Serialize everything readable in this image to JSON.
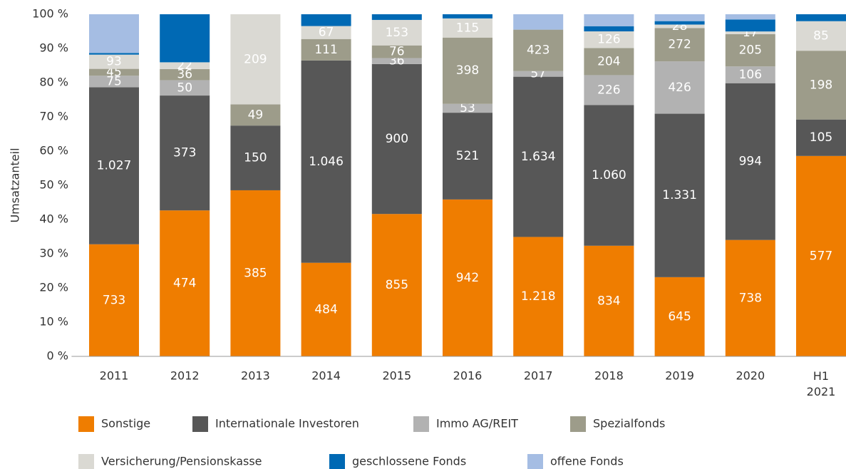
{
  "chart_data": {
    "type": "bar",
    "stacked": true,
    "normalize": true,
    "y_label": "Umsatzanteil",
    "categories": [
      "2011",
      "2012",
      "2013",
      "2014",
      "2015",
      "2016",
      "2017",
      "2018",
      "2019",
      "2020",
      "H1 2021"
    ],
    "ylim": [
      0,
      100
    ],
    "yticks": [
      {
        "value": 0,
        "label": "0 %"
      },
      {
        "value": 10,
        "label": "10 %"
      },
      {
        "value": 20,
        "label": "20 %"
      },
      {
        "value": 30,
        "label": "30 %"
      },
      {
        "value": 40,
        "label": "40 %"
      },
      {
        "value": 50,
        "label": "50 %"
      },
      {
        "value": 60,
        "label": "60 %"
      },
      {
        "value": 70,
        "label": "70 %"
      },
      {
        "value": 80,
        "label": "80 %"
      },
      {
        "value": 90,
        "label": "90 %"
      },
      {
        "value": 100,
        "label": "100 %"
      }
    ],
    "grid": false,
    "series": [
      {
        "name": "Sonstige",
        "color": "#ef7d00",
        "values": [
          733,
          474,
          385,
          484,
          855,
          942,
          1218,
          834,
          645,
          738,
          577
        ],
        "value_labels": [
          "733",
          "474",
          "385",
          "484",
          "855",
          "942",
          "1.218",
          "834",
          "645",
          "738",
          "577"
        ]
      },
      {
        "name": "Internationale Investoren",
        "color": "#575757",
        "values": [
          1027,
          373,
          150,
          1046,
          900,
          521,
          1634,
          1060,
          1331,
          994,
          105
        ],
        "value_labels": [
          "1.027",
          "373",
          "150",
          "1.046",
          "900",
          "521",
          "1.634",
          "1.060",
          "1.331",
          "994",
          "105"
        ]
      },
      {
        "name": "Immo AG/REIT",
        "color": "#b2b2b2",
        "values": [
          75,
          50,
          0,
          0,
          36,
          53,
          57,
          226,
          426,
          106,
          0
        ],
        "value_labels": [
          "75",
          "50",
          null,
          null,
          "36",
          "53",
          "57",
          "226",
          "426",
          "106",
          null
        ]
      },
      {
        "name": "Spezialfonds",
        "color": "#9d9c8a",
        "values": [
          45,
          36,
          49,
          111,
          76,
          398,
          423,
          204,
          272,
          205,
          198
        ],
        "value_labels": [
          "45",
          "36",
          "49",
          "111",
          "76",
          "398",
          "423",
          "204",
          "272",
          "205",
          "198"
        ]
      },
      {
        "name": "Versicherung/Pensionskasse",
        "color": "#dad9d3",
        "values": [
          93,
          22,
          209,
          67,
          153,
          115,
          0,
          126,
          28,
          17,
          85
        ],
        "value_labels": [
          "93",
          "22",
          "209",
          "67",
          "153",
          "115",
          null,
          "126",
          "28",
          "17",
          "85"
        ]
      },
      {
        "name": "geschlossene Fonds",
        "color": "#0069b4",
        "values": [
          11,
          156,
          0,
          61,
          34,
          25,
          0,
          39,
          28,
          76,
          20
        ],
        "value_labels": [
          null,
          null,
          null,
          null,
          null,
          null,
          null,
          null,
          null,
          null,
          null
        ]
      },
      {
        "name": "offene Fonds",
        "color": "#a5bde3",
        "values": [
          253,
          0,
          0,
          0,
          0,
          0,
          157,
          90,
          56,
          33,
          0
        ],
        "value_labels": [
          null,
          null,
          null,
          null,
          null,
          null,
          null,
          null,
          null,
          null,
          null
        ]
      }
    ]
  }
}
